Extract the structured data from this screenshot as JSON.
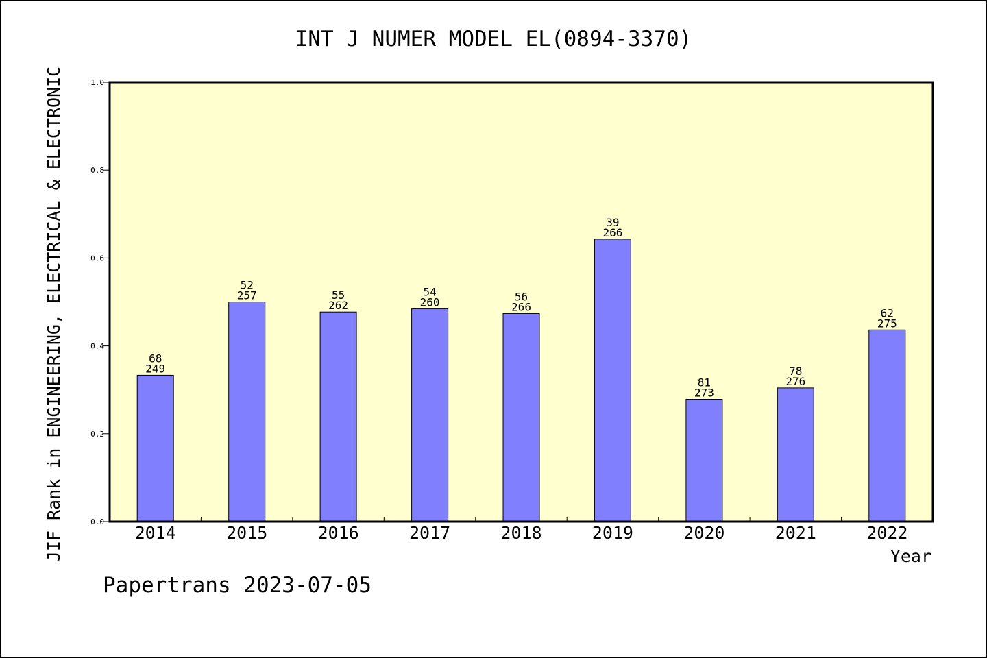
{
  "chart_data": {
    "type": "bar",
    "title": "INT J NUMER MODEL EL(0894-3370)",
    "ylabel": "JIF Rank in ENGINEERING, ELECTRICAL & ELECTRONIC",
    "xlabel": "Year",
    "footer": "Papertrans 2023-07-05",
    "categories": [
      "2014",
      "2015",
      "2016",
      "2017",
      "2018",
      "2019",
      "2020",
      "2021",
      "2022"
    ],
    "values": [
      0.3333,
      0.5,
      0.4771,
      0.4846,
      0.4737,
      0.6429,
      0.2784,
      0.3043,
      0.4364
    ],
    "rank_labels": [
      "68",
      "52",
      "55",
      "54",
      "56",
      "39",
      "81",
      "78",
      "62"
    ],
    "total_labels": [
      "249",
      "257",
      "262",
      "260",
      "266",
      "266",
      "273",
      "276",
      "275"
    ],
    "ylim": [
      0,
      1.0
    ],
    "yticks": [
      "0.0",
      "0.2",
      "0.4",
      "0.6",
      "0.8",
      "1.0"
    ],
    "grid": false,
    "legend": "none"
  },
  "colors": {
    "plot_background": "#ffffd0",
    "bar_fill": "#8080ff",
    "bar_stroke": "#000000",
    "axis": "#000000",
    "text": "#000000",
    "page_background": "#ffffff"
  }
}
